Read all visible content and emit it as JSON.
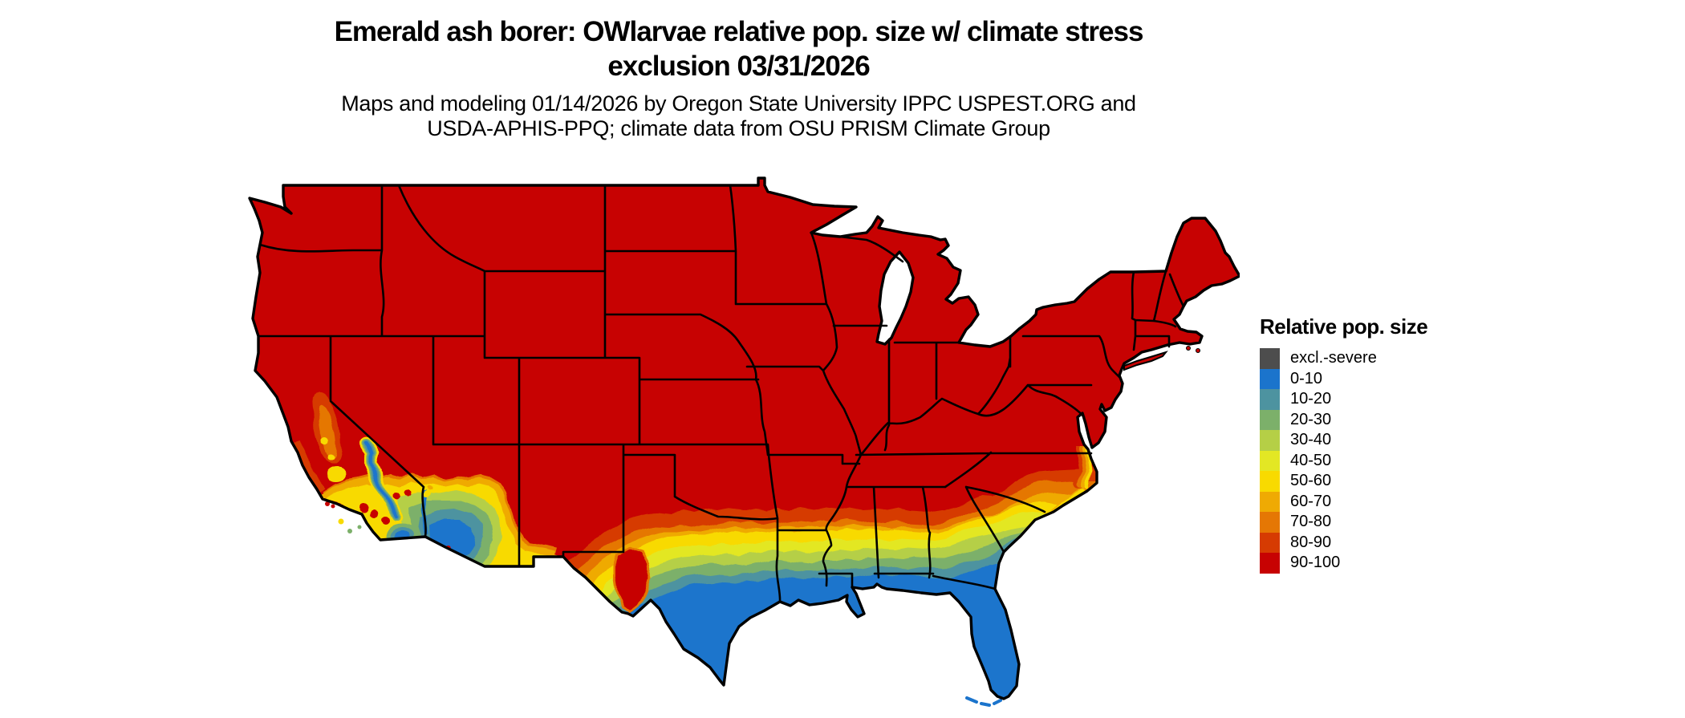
{
  "title": {
    "line1": "Emerald ash borer: OWlarvae relative pop. size w/ climate stress",
    "line2": "exclusion 03/31/2026"
  },
  "subtitle": {
    "line1": "Maps and modeling 01/14/2026 by Oregon State University IPPC USPEST.ORG and",
    "line2": "USDA-APHIS-PPQ; climate data from OSU PRISM Climate Group"
  },
  "legend": {
    "title": "Relative pop. size",
    "items": [
      {
        "label": "excl.-severe",
        "color": "#4d4d4d"
      },
      {
        "label": "0-10",
        "color": "#1b74cc"
      },
      {
        "label": "10-20",
        "color": "#4d93a0"
      },
      {
        "label": "20-30",
        "color": "#7cb06a"
      },
      {
        "label": "30-40",
        "color": "#b5cf46"
      },
      {
        "label": "40-50",
        "color": "#e3e724"
      },
      {
        "label": "50-60",
        "color": "#f8da00"
      },
      {
        "label": "60-70",
        "color": "#efaa03"
      },
      {
        "label": "70-80",
        "color": "#e57704"
      },
      {
        "label": "80-90",
        "color": "#d63b02"
      },
      {
        "label": "90-100",
        "color": "#c70202"
      }
    ]
  }
}
